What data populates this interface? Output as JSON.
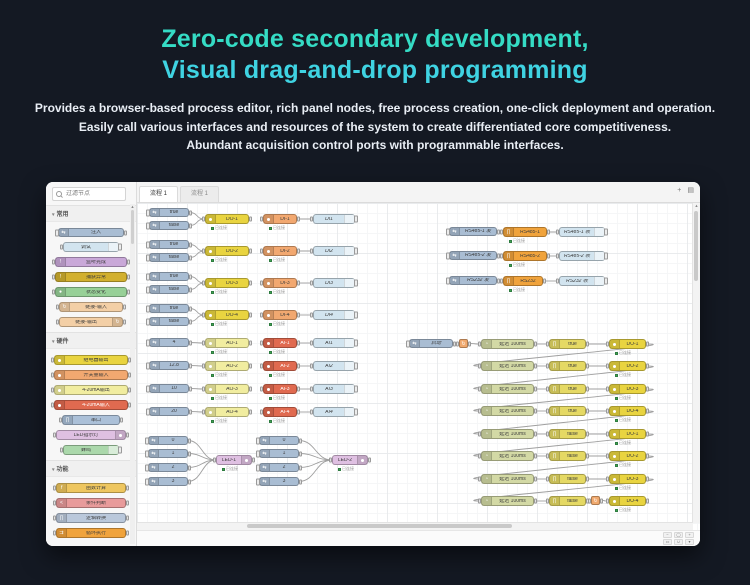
{
  "hero": {
    "title1": "Zero-code secondary development,",
    "title2": "Visual drag-and-drop programming",
    "desc": [
      "Provides a browser-based process editor, rich panel nodes, free process creation, one-click deployment and operation.",
      "Easily call various interfaces and resources of the system to create differentiated core competitiveness.",
      "Abundant acquisition control ports with programmable interfaces."
    ],
    "accent_color_1": "#35dcc5",
    "accent_color_2": "#3fd3e2"
  },
  "editor": {
    "status_label": "已连接",
    "tabs": [
      {
        "label": "流程 1",
        "active": true
      },
      {
        "label": "流程 1",
        "active": false
      }
    ],
    "tab_icons": {
      "add": "+",
      "list": "▤"
    },
    "palette": {
      "search_placeholder": "过滤节点",
      "sections": [
        {
          "label": "常用",
          "items": [
            {
              "label": "注入",
              "type": "inject",
              "w": 66
            },
            {
              "label": "调试",
              "type": "debug",
              "w": 56
            },
            {
              "label": "监听完成",
              "type": "complete",
              "w": 72
            },
            {
              "label": "捕获异常",
              "type": "catch",
              "w": 72
            },
            {
              "label": "状态变化",
              "type": "statusn",
              "w": 72
            },
            {
              "label": "链接-输入",
              "type": "linkio",
              "w": 64
            },
            {
              "label": "链接-输出",
              "type": "linkio2",
              "w": 64
            }
          ]
        },
        {
          "label": "硬件",
          "items": [
            {
              "label": "继电器输出",
              "type": "do",
              "w": 74
            },
            {
              "label": "开关量输入",
              "type": "di",
              "w": 74
            },
            {
              "label": "4-20mA输出",
              "type": "ao",
              "w": 74
            },
            {
              "label": "4-20mA输入",
              "type": "ai",
              "w": 74
            },
            {
              "label": "串口",
              "type": "serialb",
              "w": 58
            },
            {
              "label": "LED指示灯",
              "type": "led",
              "w": 70
            },
            {
              "label": "蜂鸣",
              "type": "buzzer",
              "w": 56
            }
          ]
        },
        {
          "label": "功能",
          "items": [
            {
              "label": "函数计算",
              "type": "func",
              "w": 70
            },
            {
              "label": "条件判断",
              "type": "switchn",
              "w": 70
            },
            {
              "label": "逻辑转换",
              "type": "changen",
              "w": 70
            },
            {
              "label": "循环执行",
              "type": "rangen",
              "w": 70
            }
          ]
        }
      ]
    },
    "controls": {
      "rows": [
        [
          "−",
          "◯",
          "+"
        ],
        [
          "▭",
          "∪",
          "▾"
        ]
      ]
    },
    "canvas": {
      "nodes": [
        [
          "a1t",
          "inject",
          "true",
          12,
          5,
          40,
          ""
        ],
        [
          "a1f",
          "inject",
          "false",
          12,
          18,
          40,
          ""
        ],
        [
          "do1",
          "do",
          "DO-1",
          68,
          11,
          44,
          "s"
        ],
        [
          "di1",
          "di",
          "DI-1",
          126,
          11,
          34,
          "s"
        ],
        [
          "ddi1",
          "debug",
          "DI1",
          176,
          11,
          42,
          "i"
        ],
        [
          "a2t",
          "inject",
          "true",
          12,
          37,
          40,
          ""
        ],
        [
          "a2f",
          "inject",
          "false",
          12,
          50,
          40,
          ""
        ],
        [
          "do2",
          "do",
          "DO-2",
          68,
          43,
          44,
          "s"
        ],
        [
          "di2",
          "di",
          "DI-2",
          126,
          43,
          34,
          "s"
        ],
        [
          "ddi2",
          "debug",
          "DI2",
          176,
          43,
          42,
          "i"
        ],
        [
          "a3t",
          "inject",
          "true",
          12,
          69,
          40,
          ""
        ],
        [
          "a3f",
          "inject",
          "false",
          12,
          82,
          40,
          ""
        ],
        [
          "do3",
          "do",
          "DO-3",
          68,
          75,
          44,
          "s"
        ],
        [
          "di3",
          "di",
          "DI-3",
          126,
          75,
          34,
          "s"
        ],
        [
          "ddi3",
          "debug",
          "DI3",
          176,
          75,
          42,
          "i"
        ],
        [
          "a4t",
          "inject",
          "true",
          12,
          101,
          40,
          ""
        ],
        [
          "a4f",
          "inject",
          "false",
          12,
          114,
          40,
          ""
        ],
        [
          "do4",
          "do",
          "DO-4",
          68,
          107,
          44,
          "s"
        ],
        [
          "di4",
          "di",
          "DI-4",
          126,
          107,
          34,
          "s"
        ],
        [
          "ddi4",
          "debug",
          "DI4",
          176,
          107,
          42,
          "i"
        ],
        [
          "b1",
          "inject",
          "4",
          12,
          135,
          40,
          ""
        ],
        [
          "ao1",
          "ao",
          "AO-1",
          68,
          135,
          44,
          "s"
        ],
        [
          "ai1",
          "ai",
          "AI-1",
          126,
          135,
          34,
          "s"
        ],
        [
          "dai1",
          "debug",
          "AI1",
          176,
          135,
          42,
          "i"
        ],
        [
          "b2",
          "inject",
          "12.8",
          12,
          158,
          40,
          ""
        ],
        [
          "ao2",
          "ao",
          "AO-2",
          68,
          158,
          44,
          "s"
        ],
        [
          "ai2",
          "ai",
          "AI-2",
          126,
          158,
          34,
          "s"
        ],
        [
          "dai2",
          "debug",
          "AI2",
          176,
          158,
          42,
          "i"
        ],
        [
          "b3",
          "inject",
          "10",
          12,
          181,
          40,
          ""
        ],
        [
          "ao3",
          "ao",
          "AO-3",
          68,
          181,
          44,
          "s"
        ],
        [
          "ai3",
          "ai",
          "AI-3",
          126,
          181,
          34,
          "s"
        ],
        [
          "dai3",
          "debug",
          "AI3",
          176,
          181,
          42,
          "i"
        ],
        [
          "b4",
          "inject",
          "20",
          12,
          204,
          40,
          ""
        ],
        [
          "ao4",
          "ao",
          "AO-4",
          68,
          204,
          44,
          "s"
        ],
        [
          "ai4",
          "ai",
          "AI-4",
          126,
          204,
          34,
          "s"
        ],
        [
          "dai4",
          "debug",
          "AI4",
          176,
          204,
          42,
          "i"
        ],
        [
          "c10",
          "inject",
          "0",
          11,
          233,
          40,
          ""
        ],
        [
          "c11",
          "inject",
          "1",
          11,
          246,
          40,
          ""
        ],
        [
          "c12",
          "inject",
          "2",
          11,
          260,
          40,
          ""
        ],
        [
          "c13",
          "inject",
          "3",
          11,
          274,
          40,
          ""
        ],
        [
          "led1",
          "led",
          "LED-1",
          79,
          252,
          36,
          "s"
        ],
        [
          "c20",
          "inject",
          "0",
          122,
          233,
          40,
          ""
        ],
        [
          "c21",
          "inject",
          "1",
          122,
          246,
          40,
          ""
        ],
        [
          "c22",
          "inject",
          "2",
          122,
          260,
          40,
          ""
        ],
        [
          "c23",
          "inject",
          "3",
          122,
          274,
          40,
          ""
        ],
        [
          "led2",
          "led",
          "LED-2",
          195,
          252,
          36,
          "s"
        ],
        [
          "din1",
          "inject",
          "RS485-1 发",
          312,
          24,
          48,
          "i"
        ],
        [
          "ser1",
          "serial",
          "RS485-1",
          366,
          24,
          44,
          "s"
        ],
        [
          "dbg1",
          "debug",
          "RS485-1 收",
          422,
          24,
          46,
          "i"
        ],
        [
          "din2",
          "inject",
          "RS485-2 发",
          312,
          48,
          48,
          "i"
        ],
        [
          "ser2",
          "serial",
          "RS485-2",
          366,
          48,
          44,
          "s"
        ],
        [
          "dbg2",
          "debug",
          "RS485-2 收",
          422,
          48,
          46,
          "i"
        ],
        [
          "din3",
          "inject",
          "RS232 发",
          312,
          73,
          48,
          "i"
        ],
        [
          "ser3",
          "serial",
          "RS232",
          366,
          73,
          40,
          "s"
        ],
        [
          "dbg3",
          "debug",
          "RS232 收",
          422,
          73,
          46,
          "i"
        ],
        [
          "estart",
          "inject",
          "启动",
          272,
          136,
          44,
          "i"
        ],
        [
          "elk1",
          "link",
          "",
          322,
          136,
          9,
          ""
        ],
        [
          "dly0",
          "delay",
          "延迟 100ms",
          344,
          136,
          53,
          ""
        ],
        [
          "chg0",
          "change",
          "true",
          412,
          136,
          37,
          ""
        ],
        [
          "edo0",
          "do",
          "DO-1",
          472,
          136,
          37,
          "s"
        ],
        [
          "dly1",
          "delay",
          "延迟 100ms",
          344,
          158,
          53,
          ""
        ],
        [
          "chg1",
          "change",
          "true",
          412,
          158,
          37,
          ""
        ],
        [
          "edo1",
          "do",
          "DO-2",
          472,
          158,
          37,
          "s"
        ],
        [
          "dly2",
          "delay",
          "延迟 100ms",
          344,
          181,
          53,
          ""
        ],
        [
          "chg2",
          "change",
          "true",
          412,
          181,
          37,
          ""
        ],
        [
          "edo2",
          "do",
          "DO-3",
          472,
          181,
          37,
          "s"
        ],
        [
          "dly3",
          "delay",
          "延迟 100ms",
          344,
          203,
          53,
          ""
        ],
        [
          "chg3",
          "change",
          "true",
          412,
          203,
          37,
          ""
        ],
        [
          "edo3",
          "do",
          "DO-4",
          472,
          203,
          37,
          "s"
        ],
        [
          "dly4",
          "delay",
          "延迟 100ms",
          344,
          226,
          53,
          ""
        ],
        [
          "chg4",
          "change",
          "false",
          412,
          226,
          37,
          ""
        ],
        [
          "edo4",
          "do",
          "DO-1",
          472,
          226,
          37,
          "s"
        ],
        [
          "dly5",
          "delay",
          "延迟 100ms",
          344,
          248,
          53,
          ""
        ],
        [
          "chg5",
          "change",
          "false",
          412,
          248,
          37,
          ""
        ],
        [
          "edo5",
          "do",
          "DO-2",
          472,
          248,
          37,
          "s"
        ],
        [
          "dly6",
          "delay",
          "延迟 100ms",
          344,
          271,
          53,
          ""
        ],
        [
          "chg6",
          "change",
          "false",
          412,
          271,
          37,
          ""
        ],
        [
          "edo6",
          "do",
          "DO-3",
          472,
          271,
          37,
          "s"
        ],
        [
          "dly7",
          "delay",
          "延迟 100ms",
          344,
          293,
          53,
          ""
        ],
        [
          "chg7",
          "change",
          "false",
          412,
          293,
          37,
          ""
        ],
        [
          "elk2",
          "link",
          "",
          454,
          293,
          9,
          ""
        ],
        [
          "edo7",
          "do",
          "DO-4",
          472,
          293,
          37,
          "s"
        ]
      ],
      "wires": [
        [
          "a1t",
          "do1"
        ],
        [
          "a1f",
          "do1"
        ],
        [
          "di1",
          "ddi1"
        ],
        [
          "a2t",
          "do2"
        ],
        [
          "a2f",
          "do2"
        ],
        [
          "di2",
          "ddi2"
        ],
        [
          "a3t",
          "do3"
        ],
        [
          "a3f",
          "do3"
        ],
        [
          "di3",
          "ddi3"
        ],
        [
          "a4t",
          "do4"
        ],
        [
          "a4f",
          "do4"
        ],
        [
          "di4",
          "ddi4"
        ],
        [
          "b1",
          "ao1"
        ],
        [
          "ai1",
          "dai1"
        ],
        [
          "b2",
          "ao2"
        ],
        [
          "ai2",
          "dai2"
        ],
        [
          "b3",
          "ao3"
        ],
        [
          "ai3",
          "dai3"
        ],
        [
          "b4",
          "ao4"
        ],
        [
          "ai4",
          "dai4"
        ],
        [
          "c10",
          "led1"
        ],
        [
          "c11",
          "led1"
        ],
        [
          "c12",
          "led1"
        ],
        [
          "c13",
          "led1"
        ],
        [
          "c20",
          "led2"
        ],
        [
          "c21",
          "led2"
        ],
        [
          "c22",
          "led2"
        ],
        [
          "c23",
          "led2"
        ],
        [
          "din1",
          "ser1"
        ],
        [
          "ser1",
          "dbg1"
        ],
        [
          "din2",
          "ser2"
        ],
        [
          "ser2",
          "dbg2"
        ],
        [
          "din3",
          "ser3"
        ],
        [
          "ser3",
          "dbg3"
        ],
        [
          "estart",
          "elk1"
        ],
        [
          "elk1",
          "dly0"
        ],
        [
          "dly0",
          "chg0"
        ],
        [
          "chg0",
          "edo0"
        ],
        [
          "edo0",
          "dly1"
        ],
        [
          "dly1",
          "chg1"
        ],
        [
          "chg1",
          "edo1"
        ],
        [
          "edo1",
          "dly2"
        ],
        [
          "dly2",
          "chg2"
        ],
        [
          "chg2",
          "edo2"
        ],
        [
          "edo2",
          "dly3"
        ],
        [
          "dly3",
          "chg3"
        ],
        [
          "chg3",
          "edo3"
        ],
        [
          "edo3",
          "dly4"
        ],
        [
          "dly4",
          "chg4"
        ],
        [
          "chg4",
          "edo4"
        ],
        [
          "edo4",
          "dly5"
        ],
        [
          "dly5",
          "chg5"
        ],
        [
          "chg5",
          "edo5"
        ],
        [
          "edo5",
          "dly6"
        ],
        [
          "dly6",
          "chg6"
        ],
        [
          "chg6",
          "edo6"
        ],
        [
          "edo6",
          "dly7"
        ],
        [
          "dly7",
          "chg7"
        ],
        [
          "chg7",
          "elk2"
        ],
        [
          "elk2",
          "edo7"
        ]
      ]
    }
  }
}
